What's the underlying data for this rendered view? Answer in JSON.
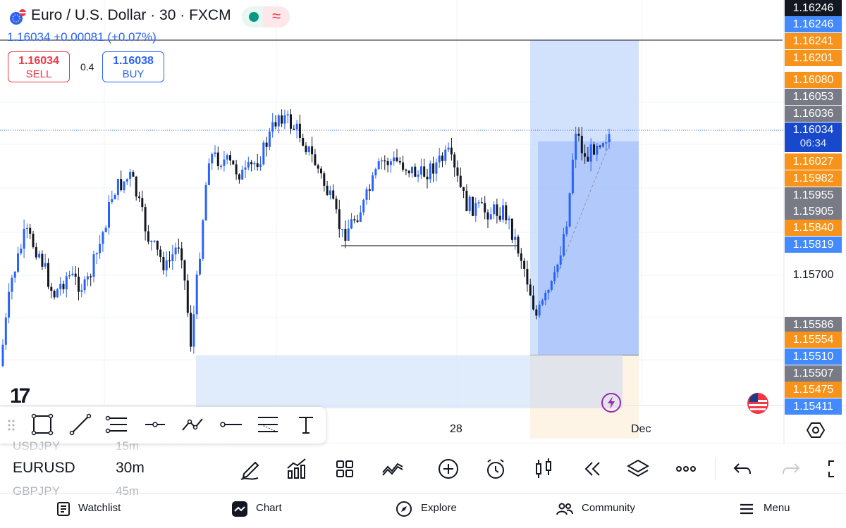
{
  "header": {
    "title": "Euro / U.S. Dollar · 30 · FXCM",
    "change": "1.16034  +0.00081 (+0.07%)",
    "live_symbol": "≈"
  },
  "trade": {
    "sell_price": "1.16034",
    "sell_label": "SELL",
    "spread": "0.4",
    "buy_price": "1.16038",
    "buy_label": "BUY"
  },
  "price_scale": {
    "labels": [
      {
        "text": "1.16246",
        "color": "#131722",
        "style": "dark"
      },
      {
        "text": "1.16246",
        "color": "#448aff",
        "style": "blue"
      },
      {
        "text": "1.16241",
        "color": "#f7931a",
        "style": "orange"
      },
      {
        "text": "1.16201",
        "color": "#f7931a",
        "style": "orange"
      },
      {
        "text": "1.16080",
        "color": "#f7931a",
        "style": "orange"
      },
      {
        "text": "1.16053",
        "color": "#787b86",
        "style": "grey"
      },
      {
        "text": "1.16036",
        "color": "#787b86",
        "style": "grey"
      },
      {
        "text": "1.16027",
        "color": "#f7931a",
        "style": "orange"
      },
      {
        "text": "1.15982",
        "color": "#f7931a",
        "style": "orange"
      },
      {
        "text": "1.15955",
        "color": "#787b86",
        "style": "grey"
      },
      {
        "text": "1.15905",
        "color": "#787b86",
        "style": "grey"
      },
      {
        "text": "1.15840",
        "color": "#f7931a",
        "style": "orange"
      },
      {
        "text": "1.15819",
        "color": "#448aff",
        "style": "blue"
      },
      {
        "text": "1.15700",
        "color": "#ffffff",
        "style": "plain"
      },
      {
        "text": "1.15586",
        "color": "#787b86",
        "style": "grey"
      },
      {
        "text": "1.15554",
        "color": "#f7931a",
        "style": "orange"
      },
      {
        "text": "1.15510",
        "color": "#448aff",
        "style": "blue"
      },
      {
        "text": "1.15507",
        "color": "#787b86",
        "style": "grey"
      },
      {
        "text": "1.15475",
        "color": "#f7931a",
        "style": "orange"
      },
      {
        "text": "1.15411",
        "color": "#448aff",
        "style": "blue"
      }
    ],
    "current_price": "1.16034",
    "countdown": "06:34"
  },
  "time_axis": {
    "labels": [
      "28",
      "Dec"
    ]
  },
  "colors": {
    "up": "#2962ff",
    "down": "#131722",
    "accent": "#2962ff",
    "sell": "#f23645",
    "live": "#089981"
  },
  "chart_data": {
    "type": "candlestick",
    "title": "Euro / U.S. Dollar · 30 · FXCM",
    "symbol": "EURUSD",
    "interval": "30m",
    "x_ticks": [
      "28",
      "Dec"
    ],
    "y_ticks": [
      "1.15700"
    ],
    "last_price": 1.16034,
    "long_position": {
      "entry": 1.15586,
      "target": 1.16246,
      "stop": 1.15411
    },
    "demand_zone": {
      "top": 1.15586,
      "bottom": 1.15507
    },
    "support_level": 1.15807,
    "grid": true
  },
  "bottom_bar": {
    "symbol_prev": "USDJPY",
    "interval_prev": "15m",
    "symbol": "EURUSD",
    "interval": "30m",
    "symbol_next": "GBPJPY",
    "interval_next": "45m"
  },
  "nav": {
    "items": [
      {
        "label": "Watchlist",
        "icon": "watchlist-icon"
      },
      {
        "label": "Chart",
        "icon": "chart-icon"
      },
      {
        "label": "Explore",
        "icon": "compass-icon"
      },
      {
        "label": "Community",
        "icon": "community-icon"
      },
      {
        "label": "Menu",
        "icon": "hamburger-icon"
      }
    ]
  }
}
